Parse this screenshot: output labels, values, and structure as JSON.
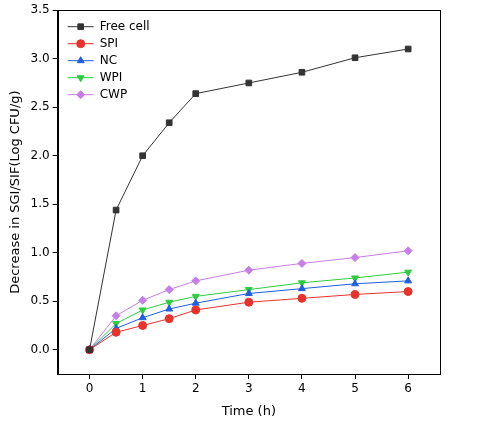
{
  "chart_data": {
    "type": "line",
    "x_label": "Time (h)",
    "y_label": "Decrease in SGI/SIF(Log CFU/g)",
    "x": [
      0,
      0.5,
      1,
      1.5,
      2,
      3,
      4,
      5,
      6
    ],
    "series": [
      {
        "name": "Free cell",
        "color": "#333333",
        "marker": "square",
        "values": [
          0,
          1.44,
          2.0,
          2.34,
          2.64,
          2.75,
          2.86,
          3.01,
          3.1
        ]
      },
      {
        "name": "SPI",
        "color": "#e8322d",
        "marker": "circle",
        "values": [
          0,
          0.18,
          0.25,
          0.32,
          0.41,
          0.49,
          0.53,
          0.57,
          0.6
        ]
      },
      {
        "name": "NC",
        "color": "#1f5fe0",
        "marker": "triangle",
        "values": [
          0,
          0.22,
          0.33,
          0.42,
          0.48,
          0.58,
          0.63,
          0.68,
          0.71
        ]
      },
      {
        "name": "WPI",
        "color": "#2ecc40",
        "marker": "triangle_down",
        "values": [
          0,
          0.27,
          0.41,
          0.49,
          0.55,
          0.62,
          0.69,
          0.74,
          0.8
        ]
      },
      {
        "name": "CWP",
        "color": "#c77ee6",
        "marker": "diamond",
        "values": [
          0,
          0.35,
          0.51,
          0.62,
          0.71,
          0.82,
          0.89,
          0.95,
          1.02
        ]
      }
    ],
    "xlim": [
      -0.6,
      6.6
    ],
    "xticks": [
      0,
      1,
      2,
      3,
      4,
      5,
      6
    ],
    "ylim": [
      -0.25,
      3.5
    ],
    "yticks": [
      {
        "value": 0,
        "label": "0.0"
      },
      0.5,
      {
        "value": 1,
        "label": "1.0"
      },
      1.5,
      {
        "value": 2,
        "label": "2.0"
      },
      2.5,
      {
        "value": 3,
        "label": "3.0"
      },
      3.5
    ],
    "grid": false,
    "legend": "upper left"
  }
}
